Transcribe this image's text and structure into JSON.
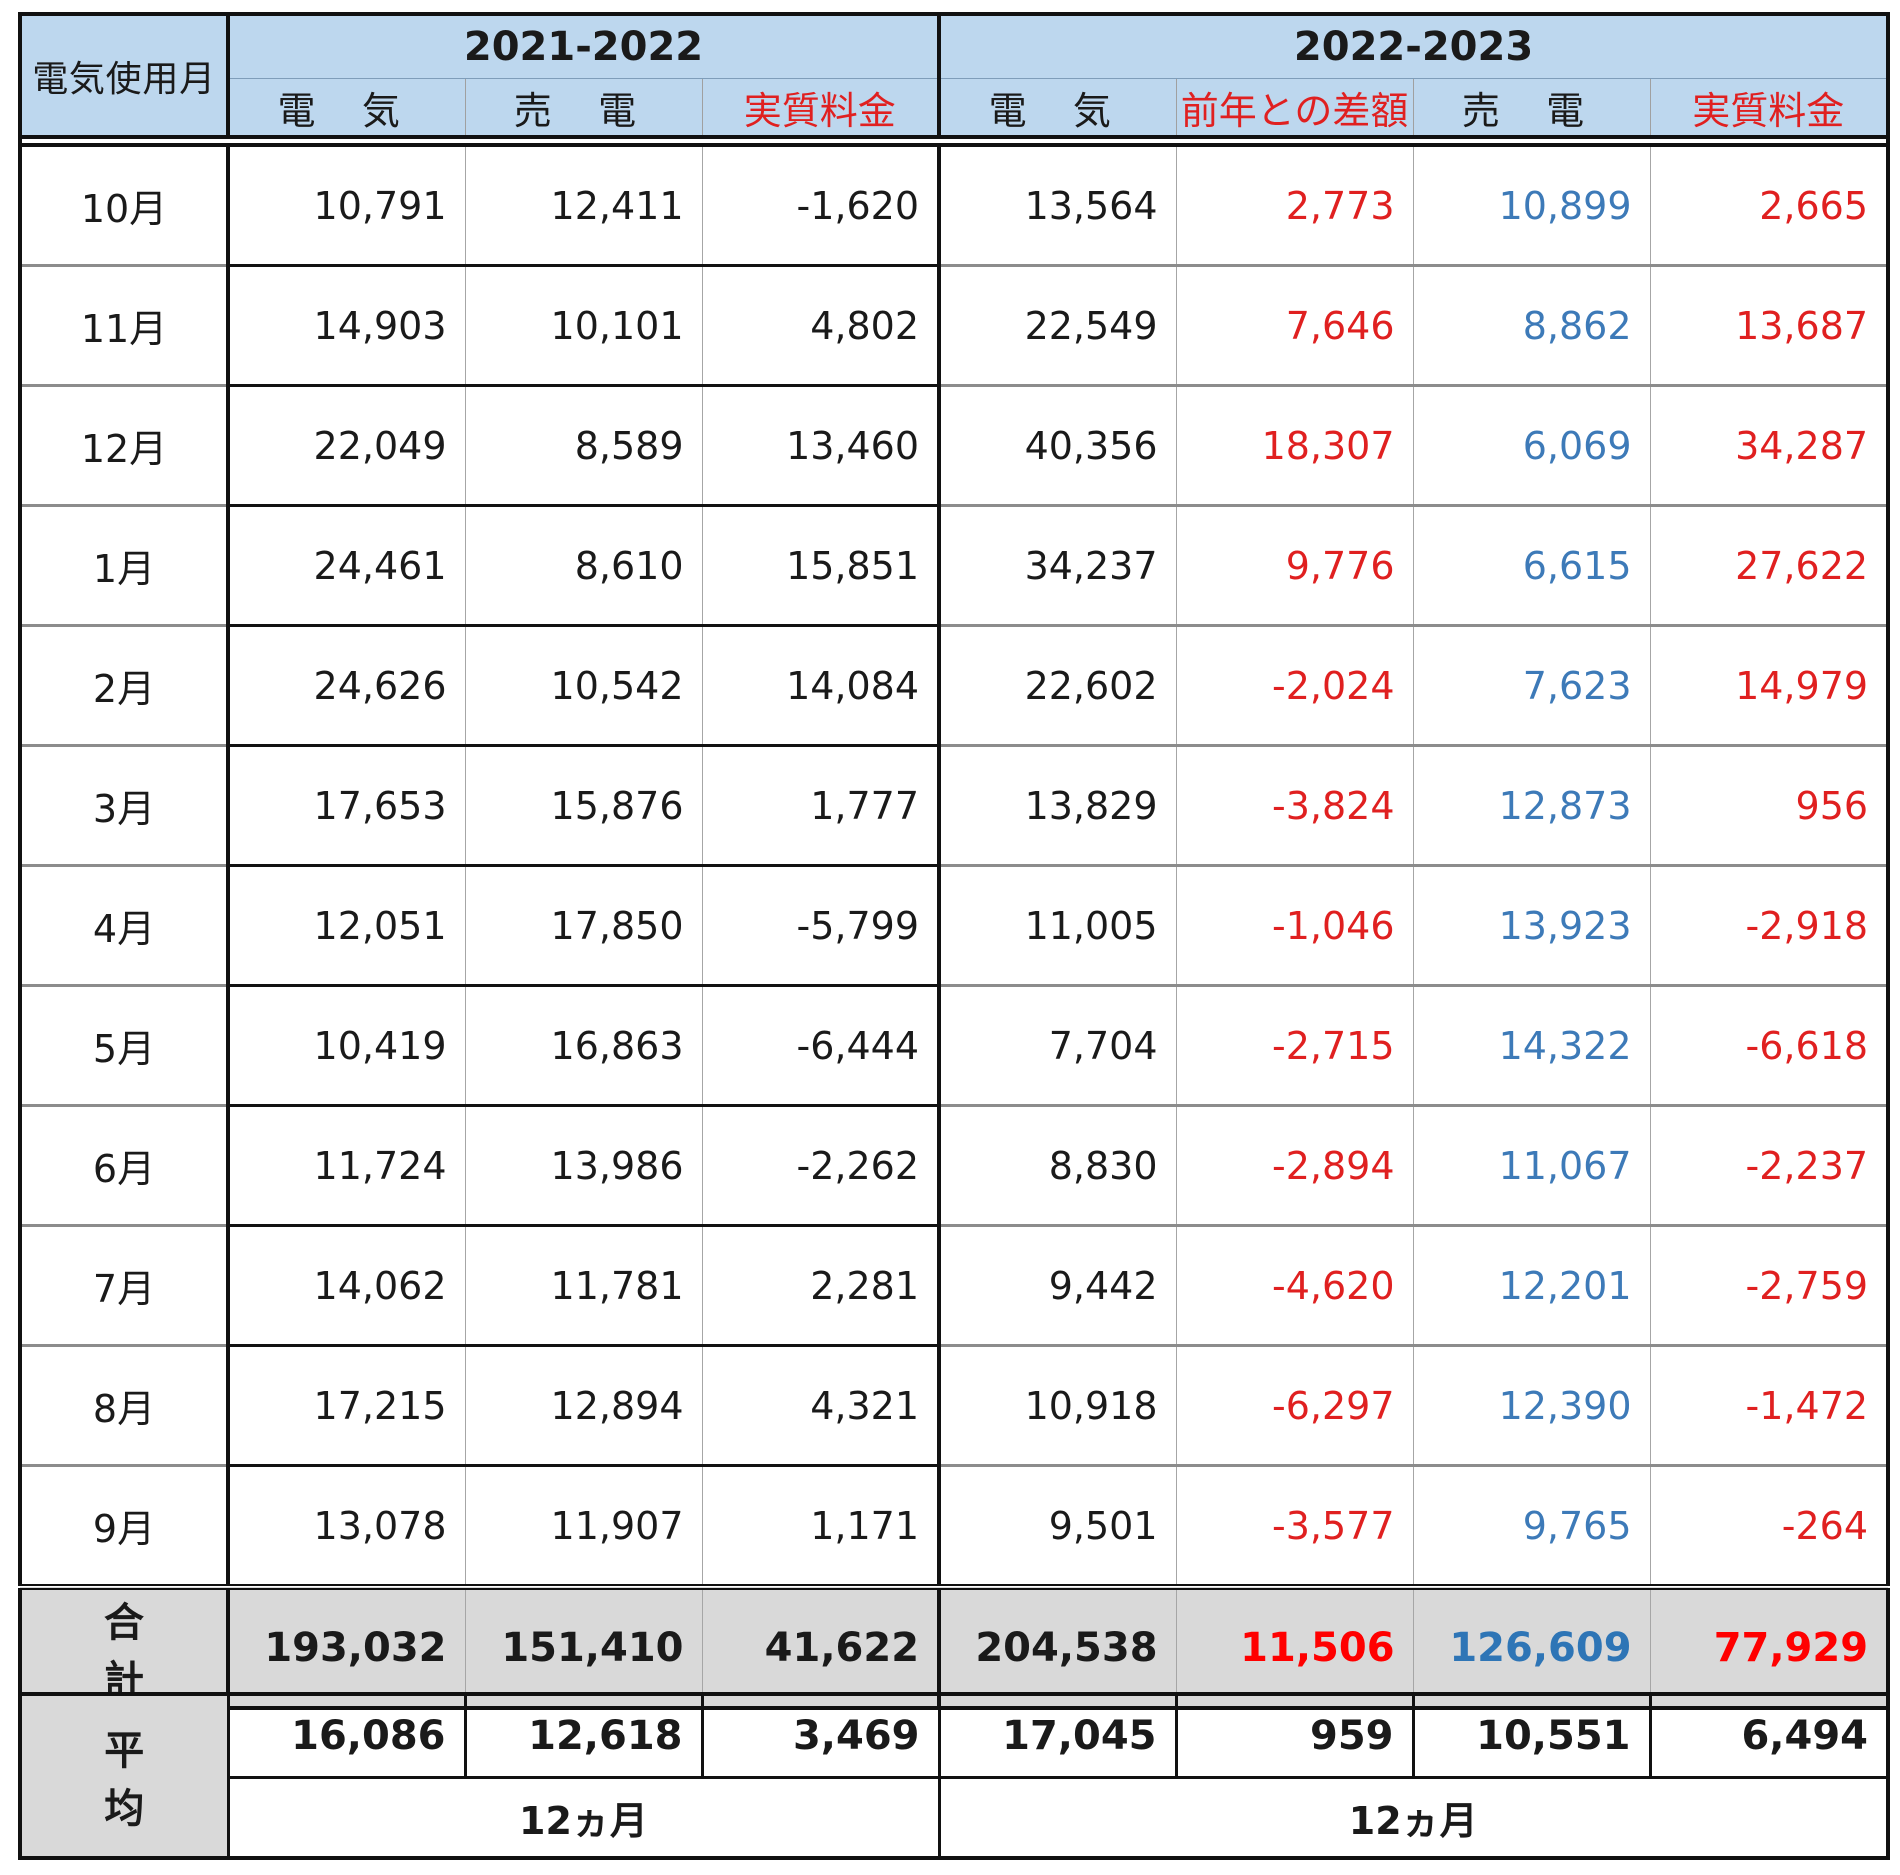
{
  "header": {
    "month_label": "電気使用月",
    "year_a": "2021-2022",
    "year_b": "2022-2023",
    "cols_a": [
      "電 気",
      "売 電",
      "実質料金"
    ],
    "cols_b": [
      "電 気",
      "前年との差額",
      "売 電",
      "実質料金"
    ]
  },
  "rows": [
    {
      "month": "10月",
      "a_elec": "10,791",
      "a_sell": "12,411",
      "a_net": "-1,620",
      "b_elec": "13,564",
      "b_diff": "2,773",
      "b_sell": "10,899",
      "b_net": "2,665"
    },
    {
      "month": "11月",
      "a_elec": "14,903",
      "a_sell": "10,101",
      "a_net": "4,802",
      "b_elec": "22,549",
      "b_diff": "7,646",
      "b_sell": "8,862",
      "b_net": "13,687"
    },
    {
      "month": "12月",
      "a_elec": "22,049",
      "a_sell": "8,589",
      "a_net": "13,460",
      "b_elec": "40,356",
      "b_diff": "18,307",
      "b_sell": "6,069",
      "b_net": "34,287"
    },
    {
      "month": "1月",
      "a_elec": "24,461",
      "a_sell": "8,610",
      "a_net": "15,851",
      "b_elec": "34,237",
      "b_diff": "9,776",
      "b_sell": "6,615",
      "b_net": "27,622"
    },
    {
      "month": "2月",
      "a_elec": "24,626",
      "a_sell": "10,542",
      "a_net": "14,084",
      "b_elec": "22,602",
      "b_diff": "-2,024",
      "b_sell": "7,623",
      "b_net": "14,979"
    },
    {
      "month": "3月",
      "a_elec": "17,653",
      "a_sell": "15,876",
      "a_net": "1,777",
      "b_elec": "13,829",
      "b_diff": "-3,824",
      "b_sell": "12,873",
      "b_net": "956"
    },
    {
      "month": "4月",
      "a_elec": "12,051",
      "a_sell": "17,850",
      "a_net": "-5,799",
      "b_elec": "11,005",
      "b_diff": "-1,046",
      "b_sell": "13,923",
      "b_net": "-2,918"
    },
    {
      "month": "5月",
      "a_elec": "10,419",
      "a_sell": "16,863",
      "a_net": "-6,444",
      "b_elec": "7,704",
      "b_diff": "-2,715",
      "b_sell": "14,322",
      "b_net": "-6,618"
    },
    {
      "month": "6月",
      "a_elec": "11,724",
      "a_sell": "13,986",
      "a_net": "-2,262",
      "b_elec": "8,830",
      "b_diff": "-2,894",
      "b_sell": "11,067",
      "b_net": "-2,237"
    },
    {
      "month": "7月",
      "a_elec": "14,062",
      "a_sell": "11,781",
      "a_net": "2,281",
      "b_elec": "9,442",
      "b_diff": "-4,620",
      "b_sell": "12,201",
      "b_net": "-2,759"
    },
    {
      "month": "8月",
      "a_elec": "17,215",
      "a_sell": "12,894",
      "a_net": "4,321",
      "b_elec": "10,918",
      "b_diff": "-6,297",
      "b_sell": "12,390",
      "b_net": "-1,472"
    },
    {
      "month": "9月",
      "a_elec": "13,078",
      "a_sell": "11,907",
      "a_net": "1,171",
      "b_elec": "9,501",
      "b_diff": "-3,577",
      "b_sell": "9,765",
      "b_net": "-264"
    }
  ],
  "total": {
    "label": "合 計",
    "a_elec": "193,032",
    "a_sell": "151,410",
    "a_net": "41,622",
    "b_elec": "204,538",
    "b_diff": "11,506",
    "b_sell": "126,609",
    "b_net": "77,929"
  },
  "average": {
    "label": "平 均",
    "a_elec": "16,086",
    "a_sell": "12,618",
    "a_net": "3,469",
    "b_elec": "17,045",
    "b_diff": "959",
    "b_sell": "10,551",
    "b_net": "6,494",
    "period_a": "12ヵ月",
    "period_b": "12ヵ月"
  },
  "colors": {
    "header_bg": "#bdd7ee",
    "total_bg": "#d9d9d9",
    "red_text": "#e02020",
    "blue_text": "#3d7ab8"
  }
}
